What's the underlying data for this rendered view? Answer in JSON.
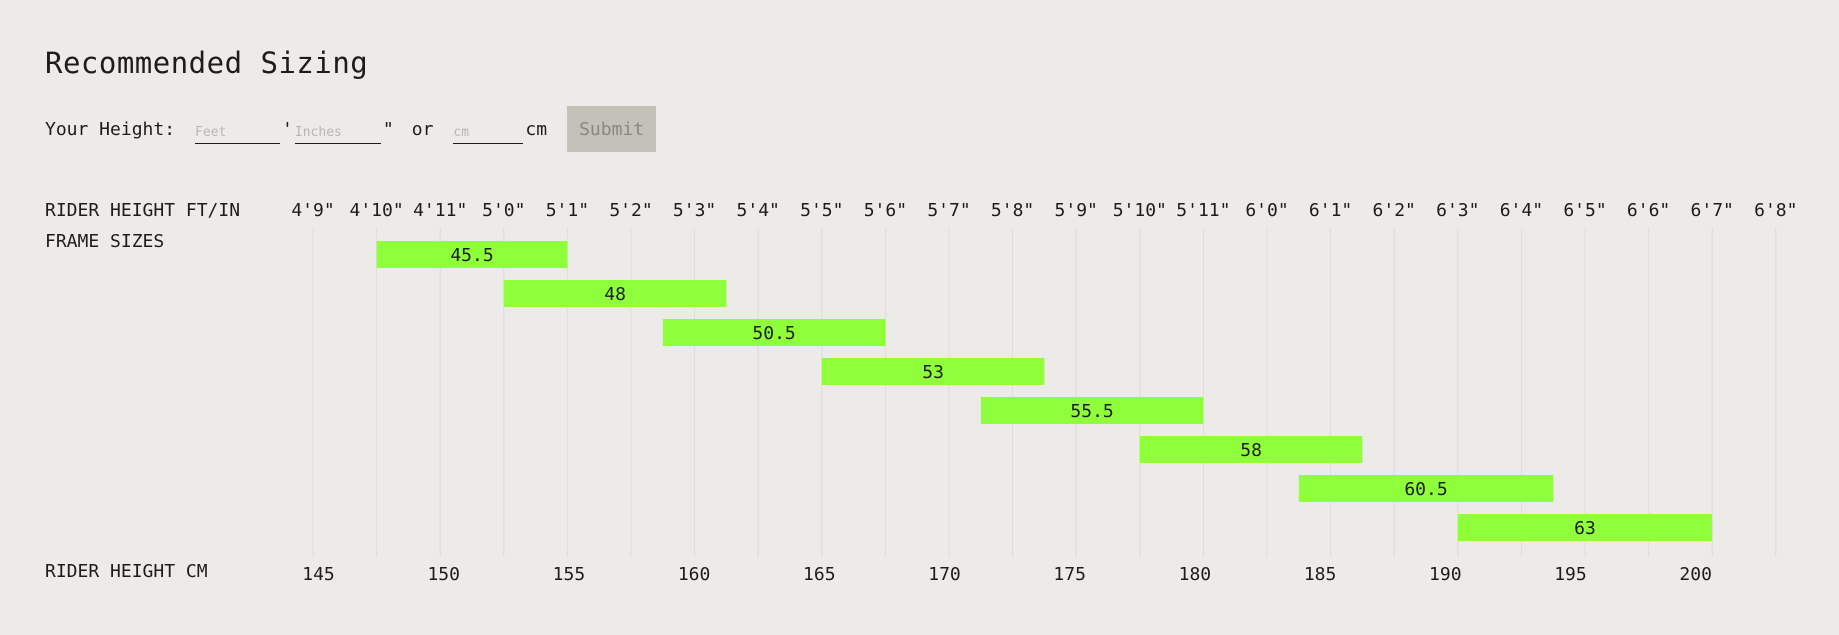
{
  "page": {
    "title": "Recommended Sizing"
  },
  "form": {
    "height_label": "Your Height:",
    "feet_placeholder": "Feet",
    "feet_mark": "'",
    "inches_placeholder": "Inches",
    "inches_mark": "\"",
    "or_label": "or",
    "cm_placeholder": "cm",
    "cm_unit": "cm",
    "submit_label": "Submit"
  },
  "chart_data": {
    "type": "bar",
    "orientation": "horizontal-range",
    "row_label_ft": "RIDER HEIGHT FT/IN",
    "row_label_frames": "FRAME SIZES",
    "row_label_cm": "RIDER HEIGHT CM",
    "ft_ticks": [
      "4'9\"",
      "4'10\"",
      "4'11\"",
      "5'0\"",
      "5'1\"",
      "5'2\"",
      "5'3\"",
      "5'4\"",
      "5'5\"",
      "5'6\"",
      "5'7\"",
      "5'8\"",
      "5'9\"",
      "5'10\"",
      "5'11\"",
      "6'0\"",
      "6'1\"",
      "6'2\"",
      "6'3\"",
      "6'4\"",
      "6'5\"",
      "6'6\"",
      "6'7\"",
      "6'8\""
    ],
    "cm_ticks": [
      145,
      150,
      155,
      160,
      165,
      170,
      175,
      180,
      185,
      190,
      195,
      200
    ],
    "bars": [
      {
        "label": "45.5",
        "start": "4'10\"",
        "end": "5'1\""
      },
      {
        "label": "48",
        "start": "5'0\"",
        "end": "5'3.5\""
      },
      {
        "label": "50.5",
        "start": "5'2.5\"",
        "end": "5'6\""
      },
      {
        "label": "53",
        "start": "5'5\"",
        "end": "5'8.5\""
      },
      {
        "label": "55.5",
        "start": "5'7.5\"",
        "end": "5'11\""
      },
      {
        "label": "58",
        "start": "5'10\"",
        "end": "6'1.5\""
      },
      {
        "label": "60.5",
        "start": "6'0.5\"",
        "end": "6'4.5\""
      },
      {
        "label": "63",
        "start": "6'3\"",
        "end": "6'7\""
      }
    ],
    "bar_color": "#8fff3c",
    "grid": true
  }
}
